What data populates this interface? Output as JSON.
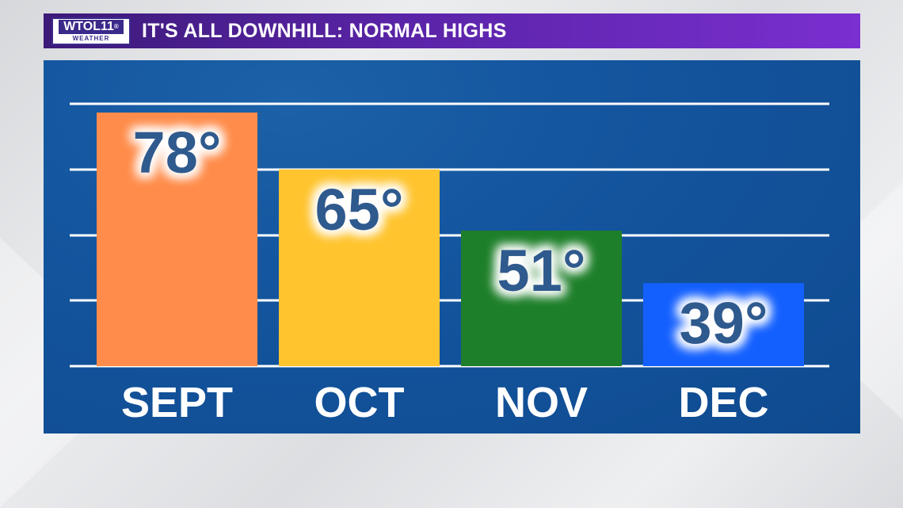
{
  "header": {
    "logo_main": "WTOL11",
    "logo_registered": "®",
    "logo_sub": "WEATHER",
    "title": "IT'S ALL DOWNHILL: NORMAL HIGHS"
  },
  "colors": {
    "panel": "#1456a0",
    "title_bar": "#5a24a8",
    "value_text": "#2d5a8e"
  },
  "chart_data": {
    "type": "bar",
    "title": "IT'S ALL DOWNHILL: NORMAL HIGHS",
    "categories": [
      "SEPT",
      "OCT",
      "NOV",
      "DEC"
    ],
    "values": [
      78,
      65,
      51,
      39
    ],
    "labels": [
      "78°",
      "65°",
      "51°",
      "39°"
    ],
    "bar_colors": [
      "#ff8c4a",
      "#ffc42e",
      "#1e7f2a",
      "#1460ff"
    ],
    "ylim": [
      20,
      80
    ],
    "grid": true,
    "xlabel": "",
    "ylabel": ""
  }
}
